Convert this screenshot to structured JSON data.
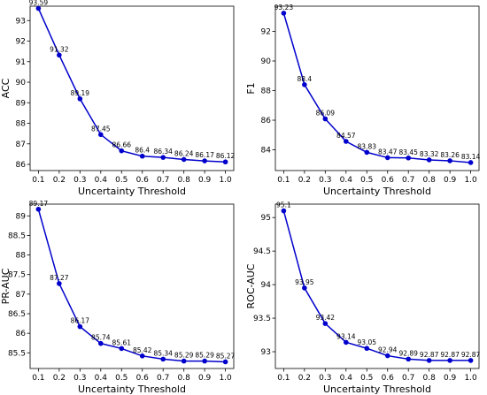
{
  "chart_data": [
    {
      "type": "line",
      "x": [
        0.1,
        0.2,
        0.3,
        0.4,
        0.5,
        0.6,
        0.7,
        0.8,
        0.9,
        1.0
      ],
      "x_ticks": [
        "0.1",
        "0.2",
        "0.3",
        "0.4",
        "0.5",
        "0.6",
        "0.7",
        "0.8",
        "0.9",
        "1.0"
      ],
      "series": [
        {
          "values": [
            93.59,
            91.32,
            89.19,
            87.45,
            86.66,
            86.4,
            86.34,
            86.24,
            86.17,
            86.12
          ]
        }
      ],
      "data_labels": [
        "93.59",
        "91.32",
        "89.19",
        "87.45",
        "86.66",
        "86.4",
        "86.34",
        "86.24",
        "86.17",
        "86.12"
      ],
      "xlabel": "Uncertainty Threshold",
      "ylabel": "ACC",
      "xlim": [
        0.06,
        1.04
      ],
      "ylim": [
        85.7,
        93.7
      ],
      "y_ticks": [
        86,
        87,
        88,
        89,
        90,
        91,
        92,
        93
      ],
      "color": "#0000cc",
      "grid": false
    },
    {
      "type": "line",
      "x": [
        0.1,
        0.2,
        0.3,
        0.4,
        0.5,
        0.6,
        0.7,
        0.8,
        0.9,
        1.0
      ],
      "x_ticks": [
        "0.1",
        "0.2",
        "0.3",
        "0.4",
        "0.5",
        "0.6",
        "0.7",
        "0.8",
        "0.9",
        "1.0"
      ],
      "series": [
        {
          "values": [
            93.23,
            88.4,
            86.09,
            84.57,
            83.83,
            83.47,
            83.45,
            83.32,
            83.26,
            83.14
          ]
        }
      ],
      "data_labels": [
        "93.23",
        "88.4",
        "86.09",
        "84.57",
        "83.83",
        "83.47",
        "83.45",
        "83.32",
        "83.26",
        "83.14"
      ],
      "xlabel": "Uncertainty Threshold",
      "ylabel": "F1",
      "xlim": [
        0.06,
        1.04
      ],
      "ylim": [
        82.6,
        93.7
      ],
      "y_ticks": [
        84,
        86,
        88,
        90,
        92
      ],
      "color": "#0000cc",
      "grid": false
    },
    {
      "type": "line",
      "x": [
        0.1,
        0.2,
        0.3,
        0.4,
        0.5,
        0.6,
        0.7,
        0.8,
        0.9,
        1.0
      ],
      "x_ticks": [
        "0.1",
        "0.2",
        "0.3",
        "0.4",
        "0.5",
        "0.6",
        "0.7",
        "0.8",
        "0.9",
        "1.0"
      ],
      "series": [
        {
          "values": [
            89.17,
            87.27,
            86.17,
            85.74,
            85.61,
            85.42,
            85.34,
            85.29,
            85.29,
            85.27
          ]
        }
      ],
      "data_labels": [
        "89.17",
        "87.27",
        "86.17",
        "85.74",
        "85.61",
        "85.42",
        "85.34",
        "85.29",
        "85.29",
        "85.27"
      ],
      "xlabel": "Uncertainty Threshold",
      "ylabel": "PR-AUC",
      "xlim": [
        0.06,
        1.04
      ],
      "ylim": [
        85.1,
        89.3
      ],
      "y_ticks": [
        85.5,
        86.0,
        86.5,
        87.0,
        87.5,
        88.0,
        88.5,
        89.0
      ],
      "color": "#0000cc",
      "grid": false
    },
    {
      "type": "line",
      "x": [
        0.1,
        0.2,
        0.3,
        0.4,
        0.5,
        0.6,
        0.7,
        0.8,
        0.9,
        1.0
      ],
      "x_ticks": [
        "0.1",
        "0.2",
        "0.3",
        "0.4",
        "0.5",
        "0.6",
        "0.7",
        "0.8",
        "0.9",
        "1.0"
      ],
      "series": [
        {
          "values": [
            95.1,
            93.95,
            93.42,
            93.14,
            93.05,
            92.94,
            92.89,
            92.87,
            92.87,
            92.87
          ]
        }
      ],
      "data_labels": [
        "95.1",
        "93.95",
        "93.42",
        "93.14",
        "93.05",
        "92.94",
        "92.89",
        "92.87",
        "92.87",
        "92.87"
      ],
      "xlabel": "Uncertainty Threshold",
      "ylabel": "ROC-AUC",
      "xlim": [
        0.06,
        1.04
      ],
      "ylim": [
        92.75,
        95.2
      ],
      "y_ticks": [
        93.0,
        93.5,
        94.0,
        94.5,
        95.0
      ],
      "color": "#0000cc",
      "grid": false
    }
  ]
}
